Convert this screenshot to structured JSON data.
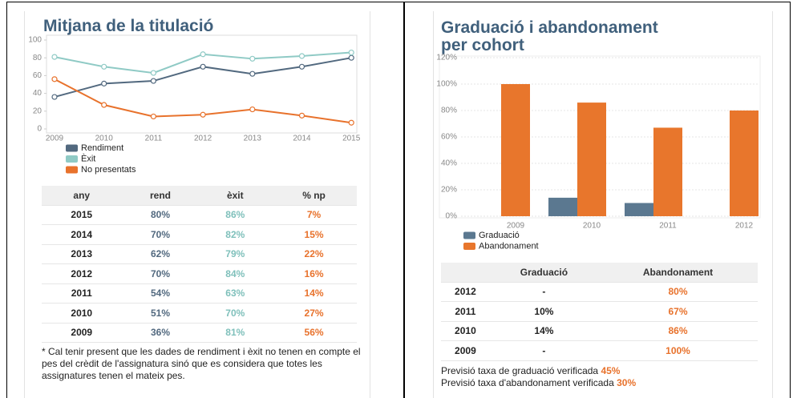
{
  "chart_data": [
    {
      "type": "line",
      "title": "Mitjana de la titulació",
      "categories": [
        "2009",
        "2010",
        "2011",
        "2012",
        "2013",
        "2014",
        "2015"
      ],
      "series": [
        {
          "name": "Rendiment",
          "color": "#52697f",
          "values": [
            36,
            51,
            54,
            70,
            62,
            70,
            80
          ]
        },
        {
          "name": "Èxit",
          "color": "#8fcac5",
          "values": [
            81,
            70,
            63,
            84,
            79,
            82,
            86
          ]
        },
        {
          "name": "No presentats",
          "color": "#e8722c",
          "values": [
            56,
            27,
            14,
            16,
            22,
            15,
            7
          ]
        }
      ],
      "ylim": [
        0,
        100
      ],
      "yticks": [
        0,
        20,
        40,
        60,
        80,
        100
      ],
      "grid": false
    },
    {
      "type": "bar",
      "title": "Graduació i abandonament per cohort",
      "categories": [
        "2009",
        "2010",
        "2011",
        "2012"
      ],
      "series": [
        {
          "name": "Graduació",
          "color": "#5b7890",
          "values": [
            null,
            14,
            10,
            null
          ]
        },
        {
          "name": "Abandonament",
          "color": "#e8762c",
          "values": [
            100,
            86,
            67,
            80
          ]
        }
      ],
      "ylim": [
        0,
        120
      ],
      "yticks": [
        {
          "value": 0,
          "label": "0%"
        },
        {
          "value": 20,
          "label": "20%"
        },
        {
          "value": 40,
          "label": "40%"
        },
        {
          "value": 60,
          "label": "60%"
        },
        {
          "value": 80,
          "label": "80%"
        },
        {
          "value": 100,
          "label": "100%"
        },
        {
          "value": 120,
          "label": "120%"
        }
      ],
      "grid": true
    }
  ],
  "tables": [
    {
      "columns": [
        "any",
        "rend",
        "èxit",
        "% np"
      ],
      "rows": [
        [
          "2015",
          "80%",
          "86%",
          "7%"
        ],
        [
          "2014",
          "70%",
          "82%",
          "15%"
        ],
        [
          "2013",
          "62%",
          "79%",
          "22%"
        ],
        [
          "2012",
          "70%",
          "84%",
          "16%"
        ],
        [
          "2011",
          "54%",
          "63%",
          "14%"
        ],
        [
          "2010",
          "51%",
          "70%",
          "27%"
        ],
        [
          "2009",
          "36%",
          "81%",
          "56%"
        ]
      ]
    },
    {
      "columns": [
        "Graduació",
        "Abandonament"
      ],
      "rows": [
        [
          "2012",
          "-",
          "80%"
        ],
        [
          "2011",
          "10%",
          "67%"
        ],
        [
          "2010",
          "14%",
          "86%"
        ],
        [
          "2009",
          "-",
          "100%"
        ]
      ]
    }
  ],
  "note": "* Cal tenir present que les dades de rendiment i èxit no tenen en compte el pes del crèdit de l'assignatura sinó que es considera que totes les assignatures tenen el mateix pes.",
  "forecasts": [
    {
      "text": "Previsió taxa de graduació verificada",
      "value": "45%"
    },
    {
      "text": "Previsió taxa d'abandonament verificada",
      "value": "30%"
    }
  ]
}
